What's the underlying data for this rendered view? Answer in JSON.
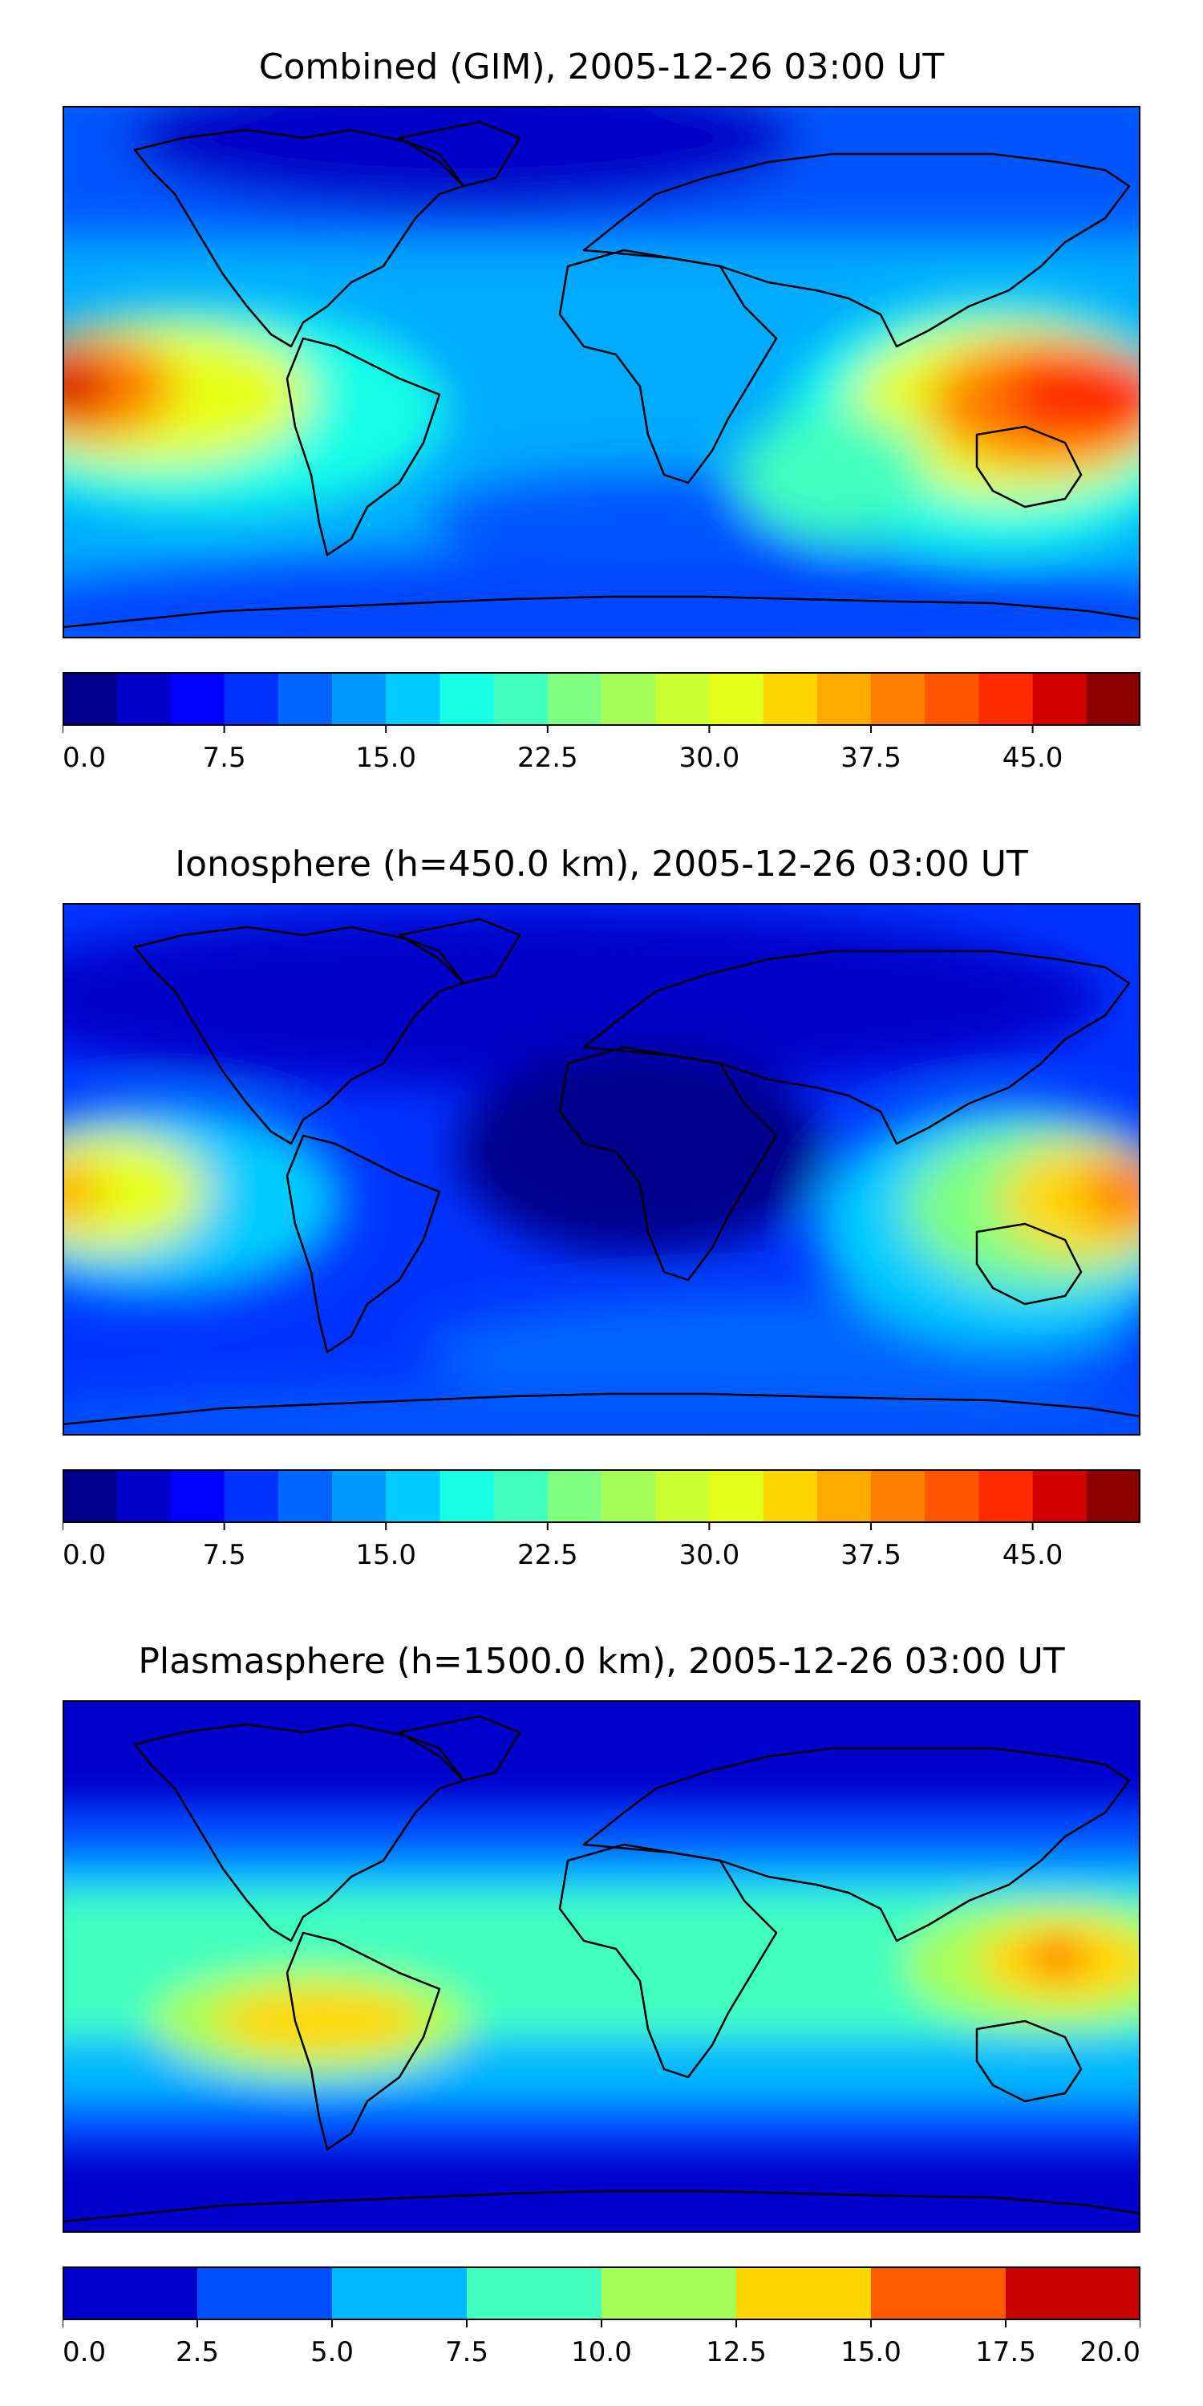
{
  "panels": [
    {
      "title": "Combined (GIM), 2005-12-26 03:00 UT",
      "cbar_ticks": [
        "0.0",
        "7.5",
        "15.0",
        "22.5",
        "30.0",
        "37.5",
        "45.0"
      ],
      "cbar_tick_values": [
        0,
        7.5,
        15,
        22.5,
        30,
        37.5,
        45
      ],
      "cbar_range": [
        0,
        50
      ],
      "cbar_levels": 20,
      "cbar_colors": [
        "#00008b",
        "#0000c8",
        "#0000ff",
        "#0033ff",
        "#0066ff",
        "#0099ff",
        "#00ccff",
        "#19ffe6",
        "#40ffbf",
        "#80ff80",
        "#a6ff59",
        "#ccff33",
        "#e6ff19",
        "#ffd700",
        "#ffaa00",
        "#ff7f00",
        "#ff5500",
        "#ff2a00",
        "#d40000",
        "#8b0000"
      ]
    },
    {
      "title": "Ionosphere  (h=450.0 km), 2005-12-26 03:00 UT",
      "cbar_ticks": [
        "0.0",
        "7.5",
        "15.0",
        "22.5",
        "30.0",
        "37.5",
        "45.0"
      ],
      "cbar_tick_values": [
        0,
        7.5,
        15,
        22.5,
        30,
        37.5,
        45
      ],
      "cbar_range": [
        0,
        50
      ],
      "cbar_levels": 20,
      "cbar_colors": [
        "#00008b",
        "#0000c8",
        "#0000ff",
        "#0033ff",
        "#0066ff",
        "#0099ff",
        "#00ccff",
        "#19ffe6",
        "#40ffbf",
        "#80ff80",
        "#a6ff59",
        "#ccff33",
        "#e6ff19",
        "#ffd700",
        "#ffaa00",
        "#ff7f00",
        "#ff5500",
        "#ff2a00",
        "#d40000",
        "#8b0000"
      ]
    },
    {
      "title": "Plasmasphere (h=1500.0 km), 2005-12-26 03:00 UT",
      "cbar_ticks": [
        "0.0",
        "2.5",
        "5.0",
        "7.5",
        "10.0",
        "12.5",
        "15.0",
        "17.5",
        "20.0"
      ],
      "cbar_tick_values": [
        0,
        2.5,
        5,
        7.5,
        10,
        12.5,
        15,
        17.5,
        20
      ],
      "cbar_range": [
        0,
        20
      ],
      "cbar_levels": 8,
      "cbar_colors": [
        "#0000cd",
        "#0050ff",
        "#00b8ff",
        "#40ffbf",
        "#a6ff59",
        "#ffd700",
        "#ff5a00",
        "#c80000"
      ]
    }
  ],
  "colors": {
    "ocean_base": "#00aaff",
    "dark_blue": "#00008b",
    "deep_blue": "#0000cd",
    "blue": "#0033ff",
    "mid_blue": "#0066ff",
    "cyan": "#00ccff",
    "aqua": "#19ffe6",
    "green": "#40ffbf",
    "yellow": "#e6ff19",
    "orange": "#ffaa00",
    "red": "#ff2a00",
    "dark_red": "#d40000"
  }
}
